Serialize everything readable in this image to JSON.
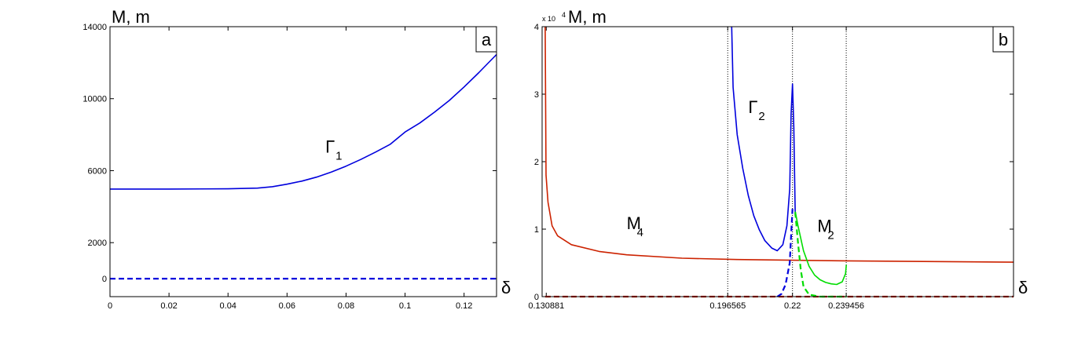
{
  "chart_data": [
    {
      "type": "line",
      "panel_label": "a",
      "ylabel": "M, m",
      "xlabel": "δ",
      "xlim": [
        0,
        0.131
      ],
      "ylim": [
        -1000,
        14000
      ],
      "x_ticks": [
        0,
        0.02,
        0.04,
        0.06,
        0.08,
        0.1,
        0.12
      ],
      "x_tick_labels": [
        "0",
        "0.02",
        "0.04",
        "0.06",
        "0.08",
        "0.1",
        "0.12"
      ],
      "y_ticks": [
        0,
        2000,
        6000,
        10000,
        14000
      ],
      "y_tick_labels": [
        "0",
        "2000",
        "6000",
        "10000",
        "14000"
      ],
      "series": [
        {
          "name": "Γ1",
          "label_main": "Γ",
          "label_sub": "1",
          "label_at": [
            0.073,
            7000
          ],
          "style": "solid",
          "color": "#0000dd",
          "x": [
            0,
            0.02,
            0.04,
            0.05,
            0.055,
            0.06,
            0.065,
            0.07,
            0.075,
            0.08,
            0.085,
            0.09,
            0.095,
            0.1,
            0.105,
            0.11,
            0.115,
            0.12,
            0.125,
            0.128,
            0.131
          ],
          "y": [
            4980,
            4980,
            4990,
            5030,
            5110,
            5250,
            5420,
            5640,
            5920,
            6250,
            6620,
            7030,
            7470,
            8150,
            8650,
            9250,
            9900,
            10650,
            11450,
            11950,
            12450
          ]
        },
        {
          "name": "m",
          "style": "dashed",
          "color": "#0000dd",
          "x": [
            0,
            0.131
          ],
          "y": [
            0,
            0
          ]
        }
      ]
    },
    {
      "type": "line",
      "panel_label": "b",
      "ylabel": "M, m",
      "xlabel": "δ",
      "y_multiplier": "x 10",
      "y_multiplier_exp": "4",
      "xlim": [
        0.12938,
        0.3
      ],
      "ylim": [
        0,
        40000
      ],
      "x_ticks": [
        0.130881,
        0.196565,
        0.22,
        0.239456
      ],
      "x_tick_labels": [
        "0.130881",
        "0.196565",
        "0.22",
        "0.239456"
      ],
      "y_ticks": [
        0,
        10000,
        20000,
        30000,
        40000
      ],
      "y_tick_labels": [
        "0",
        "1",
        "2",
        "3",
        "4"
      ],
      "vlines": [
        0.196565,
        0.22,
        0.239456
      ],
      "series": [
        {
          "name": "M4",
          "label_main": "M",
          "label_sub": "4",
          "label_at": [
            0.16,
            10000
          ],
          "style": "solid",
          "color": "#cc2200",
          "x": [
            0.1305,
            0.1308,
            0.1315,
            0.133,
            0.135,
            0.14,
            0.15,
            0.16,
            0.18,
            0.2,
            0.24,
            0.3
          ],
          "y": [
            40000,
            18000,
            14000,
            10500,
            9000,
            7700,
            6700,
            6200,
            5700,
            5500,
            5300,
            5100
          ]
        },
        {
          "name": "M4 dashed",
          "style": "dashed",
          "color": "#cc2200",
          "x": [
            0.1305,
            0.3
          ],
          "y": [
            0,
            0
          ]
        },
        {
          "name": "Γ2",
          "label_main": "Γ",
          "label_sub": "2",
          "label_at": [
            0.204,
            27200
          ],
          "style": "solid",
          "color": "#0000dd",
          "x": [
            0.198,
            0.1985,
            0.2,
            0.202,
            0.204,
            0.206,
            0.208,
            0.21,
            0.2125,
            0.2145,
            0.2165,
            0.218,
            0.219,
            0.2195,
            0.22,
            0.2205,
            0.221
          ],
          "y": [
            40000,
            31000,
            24000,
            19000,
            15000,
            12000,
            9900,
            8300,
            7200,
            6800,
            7700,
            10500,
            16000,
            27000,
            31500,
            25000,
            12000
          ]
        },
        {
          "name": "Γ2 dashed",
          "style": "dashed",
          "color": "#0000dd",
          "x": [
            0.2145,
            0.216,
            0.2175,
            0.219,
            0.2195,
            0.22
          ],
          "y": [
            0,
            400,
            1800,
            5000,
            9000,
            13000
          ]
        },
        {
          "name": "M2",
          "label_main": "M",
          "label_sub": "2",
          "label_at": [
            0.229,
            9600
          ],
          "style": "solid",
          "color": "#00dd00",
          "x": [
            0.221,
            0.222,
            0.224,
            0.226,
            0.228,
            0.23,
            0.232,
            0.234,
            0.236,
            0.238,
            0.2392,
            0.2395
          ],
          "y": [
            12600,
            10500,
            6800,
            4500,
            3200,
            2500,
            2100,
            1900,
            1800,
            2200,
            3400,
            4700
          ]
        },
        {
          "name": "M2 dashed",
          "style": "dashed",
          "color": "#00dd00",
          "x": [
            0.221,
            0.222,
            0.223,
            0.224,
            0.226,
            0.23,
            0.2395
          ],
          "y": [
            12500,
            8000,
            4000,
            1500,
            300,
            0,
            0
          ]
        }
      ]
    }
  ]
}
